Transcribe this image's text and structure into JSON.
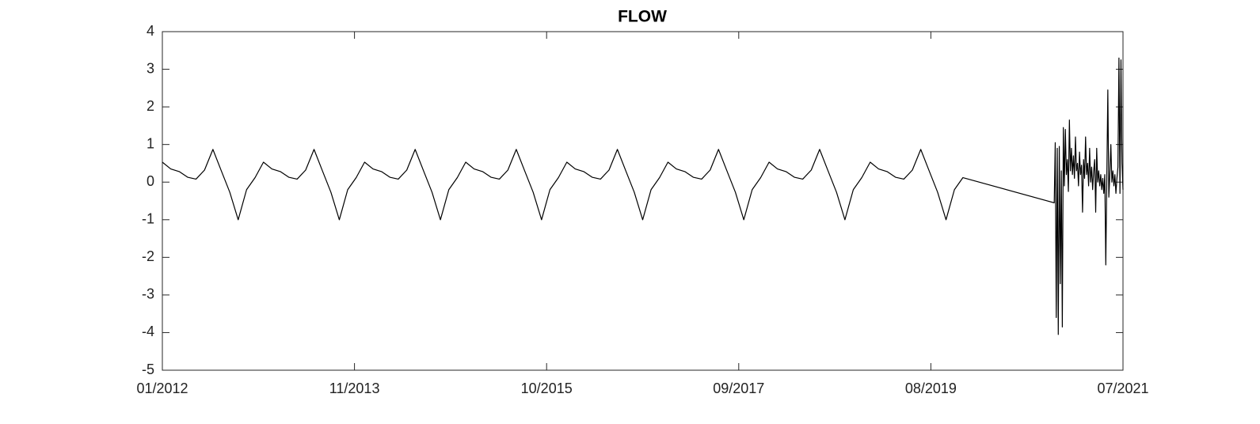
{
  "chart_data": {
    "type": "line",
    "title": "FLOW",
    "color": "#000000",
    "x": [
      2012,
      2012.083,
      2012.167,
      2012.25,
      2012.333,
      2012.417,
      2012.5,
      2012.583,
      2012.667,
      2012.75,
      2012.833,
      2012.917,
      2013,
      2013.083,
      2013.167,
      2013.25,
      2013.333,
      2013.417,
      2013.5,
      2013.583,
      2013.667,
      2013.75,
      2013.833,
      2013.917,
      2014,
      2014.083,
      2014.167,
      2014.25,
      2014.333,
      2014.417,
      2014.5,
      2014.583,
      2014.667,
      2014.75,
      2014.833,
      2014.917,
      2015,
      2015.083,
      2015.167,
      2015.25,
      2015.333,
      2015.417,
      2015.5,
      2015.583,
      2015.667,
      2015.75,
      2015.833,
      2015.917,
      2016,
      2016.083,
      2016.167,
      2016.25,
      2016.333,
      2016.417,
      2016.5,
      2016.583,
      2016.667,
      2016.75,
      2016.833,
      2016.917,
      2017,
      2017.083,
      2017.167,
      2017.25,
      2017.333,
      2017.417,
      2017.5,
      2017.583,
      2017.667,
      2017.75,
      2017.833,
      2017.917,
      2018,
      2018.083,
      2018.167,
      2018.25,
      2018.333,
      2018.417,
      2018.5,
      2018.583,
      2018.667,
      2018.75,
      2018.833,
      2018.917,
      2019,
      2019.083,
      2019.167,
      2019.25,
      2019.333,
      2019.417,
      2019.5,
      2019.583,
      2019.667,
      2019.75,
      2019.833,
      2019.917,
      2020.82,
      2020.83,
      2020.84,
      2020.85,
      2020.86,
      2020.87,
      2020.88,
      2020.89,
      2020.9,
      2020.91,
      2020.92,
      2020.93,
      2020.94,
      2020.95,
      2020.96,
      2020.97,
      2020.98,
      2020.99,
      2021,
      2021.01,
      2021.02,
      2021.03,
      2021.04,
      2021.05,
      2021.06,
      2021.07,
      2021.08,
      2021.09,
      2021.1,
      2021.11,
      2021.12,
      2021.13,
      2021.14,
      2021.15,
      2021.16,
      2021.17,
      2021.18,
      2021.19,
      2021.2,
      2021.21,
      2021.22,
      2021.23,
      2021.24,
      2021.25,
      2021.26,
      2021.27,
      2021.28,
      2021.29,
      2021.3,
      2021.31,
      2021.32,
      2021.33,
      2021.34,
      2021.35,
      2021.36,
      2021.37,
      2021.38,
      2021.39,
      2021.4,
      2021.41,
      2021.42,
      2021.43,
      2021.44,
      2021.45,
      2021.46,
      2021.47,
      2021.48,
      2021.49,
      2021.5
    ],
    "values": [
      0.53,
      0.35,
      0.28,
      0.13,
      0.08,
      0.32,
      0.87,
      0.3,
      -0.27,
      -1.0,
      -0.2,
      0.12,
      0.53,
      0.35,
      0.28,
      0.13,
      0.08,
      0.32,
      0.87,
      0.3,
      -0.27,
      -1.0,
      -0.2,
      0.12,
      0.53,
      0.35,
      0.28,
      0.13,
      0.08,
      0.32,
      0.87,
      0.3,
      -0.27,
      -1.0,
      -0.2,
      0.12,
      0.53,
      0.35,
      0.28,
      0.13,
      0.08,
      0.32,
      0.87,
      0.3,
      -0.27,
      -1.0,
      -0.2,
      0.12,
      0.53,
      0.35,
      0.28,
      0.13,
      0.08,
      0.32,
      0.87,
      0.3,
      -0.27,
      -1.0,
      -0.2,
      0.12,
      0.53,
      0.35,
      0.28,
      0.13,
      0.08,
      0.32,
      0.87,
      0.3,
      -0.27,
      -1.0,
      -0.2,
      0.12,
      0.53,
      0.35,
      0.28,
      0.13,
      0.08,
      0.32,
      0.87,
      0.3,
      -0.27,
      -1.0,
      -0.2,
      0.12,
      0.53,
      0.35,
      0.28,
      0.13,
      0.08,
      0.32,
      0.87,
      0.3,
      -0.27,
      -1.0,
      -0.2,
      0.12,
      -0.55,
      1.05,
      -3.6,
      0.9,
      -4.05,
      0.95,
      -2.7,
      0.3,
      -3.85,
      1.45,
      -0.1,
      1.4,
      0.2,
      0.6,
      -0.25,
      1.65,
      0.3,
      0.9,
      0.2,
      0.7,
      0.1,
      1.2,
      0.3,
      0.5,
      -0.1,
      0.8,
      0.2,
      0.45,
      -0.8,
      0.6,
      0.1,
      1.2,
      0.2,
      0.5,
      -0.1,
      0.9,
      0.0,
      0.4,
      -0.2,
      0.3,
      0.6,
      -0.8,
      0.9,
      0.0,
      0.3,
      -0.1,
      0.2,
      -0.2,
      0.1,
      -0.3,
      0.2,
      -2.2,
      0.1,
      2.45,
      -0.4,
      0.2,
      1.0,
      0.0,
      0.3,
      -0.1,
      0.2,
      -0.3,
      0.1,
      0.4,
      3.3,
      -0.3,
      3.25,
      0.5,
      -0.2
    ],
    "xlim": [
      2012,
      2021.5
    ],
    "xticks": [
      {
        "value": 2012,
        "label": "01/2012"
      },
      {
        "value": 2013.9,
        "label": "11/2013"
      },
      {
        "value": 2015.8,
        "label": "10/2015"
      },
      {
        "value": 2017.7,
        "label": "09/2017"
      },
      {
        "value": 2019.6,
        "label": "08/2019"
      },
      {
        "value": 2021.5,
        "label": "07/2021"
      }
    ],
    "ylim": [
      -5,
      4
    ],
    "yticks": [
      -5,
      -4,
      -3,
      -2,
      -1,
      0,
      1,
      2,
      3,
      4
    ]
  }
}
